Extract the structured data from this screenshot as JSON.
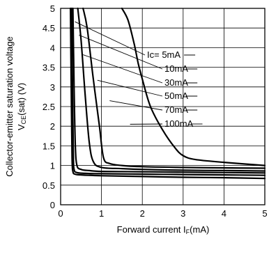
{
  "chart_data": {
    "type": "line",
    "title": "",
    "xlabel": "Forward current I",
    "xlabel_sub": "F",
    "xlabel_unit": "(mA)",
    "ylabel_line1": "Collector-emitter saturation voltage",
    "ylabel_main": "V",
    "ylabel_sub": "CE",
    "ylabel_unit": "(sat) (V)",
    "xlim": [
      0,
      5
    ],
    "ylim": [
      0,
      5
    ],
    "xticks": [
      "0",
      "1",
      "2",
      "3",
      "4",
      "5"
    ],
    "yticks": [
      "0",
      "0.5",
      "1",
      "1.5",
      "2",
      "2.5",
      "3",
      "3.5",
      "4",
      "4.5",
      "5"
    ],
    "grid": true,
    "series": [
      {
        "name": "Ic= 5mA",
        "x": [
          0.24,
          0.26,
          0.28,
          0.3,
          0.35,
          0.5,
          1.0,
          2.0,
          3.0,
          4.0,
          5.0
        ],
        "y": [
          5.0,
          3.0,
          1.2,
          0.85,
          0.78,
          0.76,
          0.74,
          0.72,
          0.7,
          0.69,
          0.67
        ]
      },
      {
        "name": "10mA",
        "x": [
          0.27,
          0.29,
          0.31,
          0.33,
          0.4,
          0.6,
          1.0,
          2.0,
          3.0,
          4.0,
          5.0
        ],
        "y": [
          5.0,
          3.0,
          1.3,
          0.9,
          0.82,
          0.8,
          0.79,
          0.78,
          0.77,
          0.76,
          0.75
        ]
      },
      {
        "name": "30mA",
        "x": [
          0.3,
          0.33,
          0.36,
          0.4,
          0.5,
          0.7,
          1.0,
          2.0,
          3.0,
          4.0,
          5.0
        ],
        "y": [
          5.0,
          3.0,
          1.5,
          1.0,
          0.9,
          0.87,
          0.85,
          0.84,
          0.83,
          0.82,
          0.81
        ]
      },
      {
        "name": "50mA",
        "x": [
          0.42,
          0.5,
          0.6,
          0.7,
          0.8,
          1.0,
          1.5,
          2.0,
          3.0,
          4.0,
          5.0
        ],
        "y": [
          5.0,
          4.2,
          2.8,
          1.6,
          1.1,
          0.95,
          0.92,
          0.9,
          0.88,
          0.87,
          0.86
        ]
      },
      {
        "name": "70mA",
        "x": [
          0.55,
          0.65,
          0.8,
          0.95,
          1.05,
          1.2,
          1.5,
          2.0,
          3.0,
          4.0,
          5.0
        ],
        "y": [
          5.0,
          4.5,
          3.2,
          2.0,
          1.2,
          1.05,
          1.0,
          0.97,
          0.95,
          0.94,
          0.93
        ]
      },
      {
        "name": "100mA",
        "x": [
          1.5,
          1.65,
          1.8,
          1.9,
          2.0,
          2.2,
          2.5,
          2.8,
          3.0,
          3.3,
          4.0,
          5.0
        ],
        "y": [
          5.0,
          4.7,
          4.1,
          3.6,
          3.2,
          2.5,
          1.9,
          1.45,
          1.25,
          1.15,
          1.08,
          1.0
        ]
      }
    ]
  }
}
